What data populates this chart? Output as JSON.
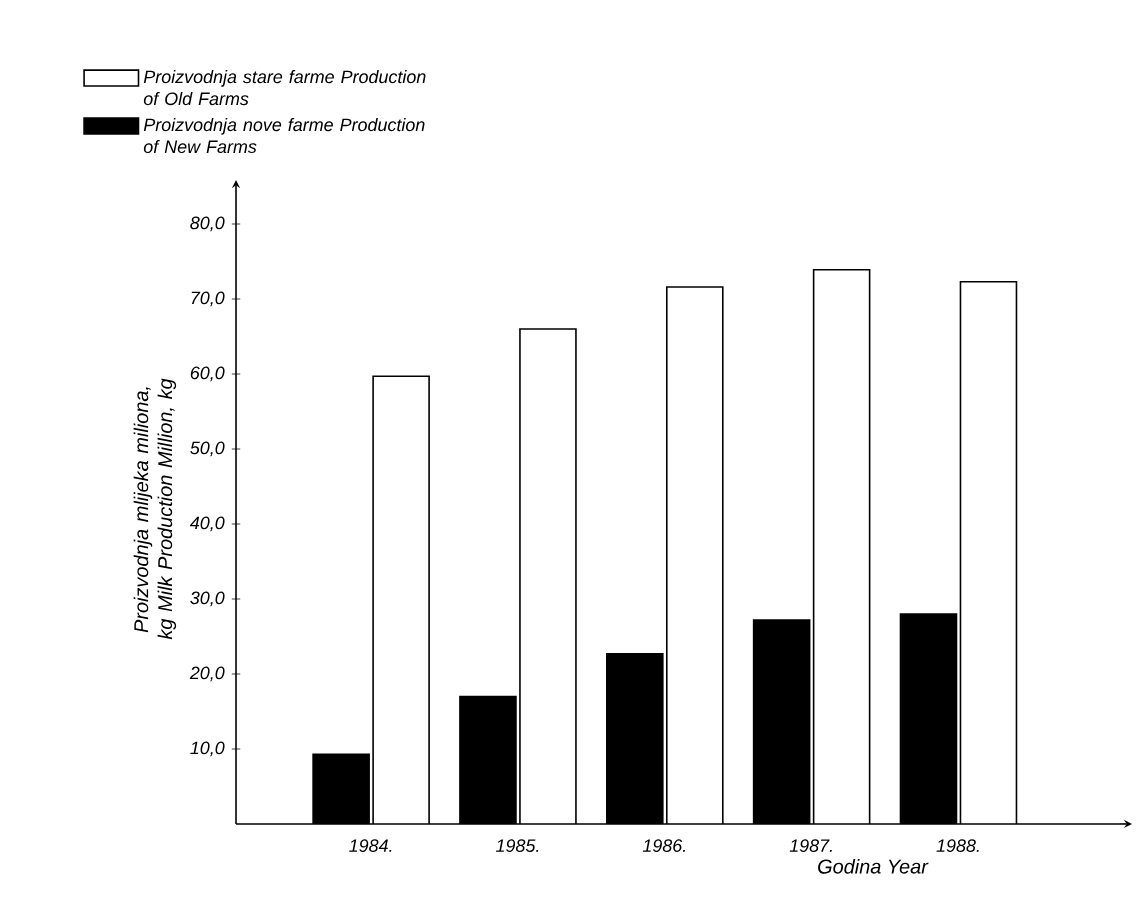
{
  "chart_data": {
    "type": "bar",
    "categories": [
      "1984.",
      "1985.",
      "1986.",
      "1987.",
      "1988."
    ],
    "series": [
      {
        "name": "Proizvodnja nove farme Production of New Farms",
        "color": "#000000",
        "values": [
          9.3,
          17,
          22.7,
          27.2,
          28
        ]
      },
      {
        "name": "Proizvodnja stare farme Production of Old Farms",
        "color": "#ffffff",
        "values": [
          59.7,
          66,
          71.6,
          73.9,
          72.3
        ]
      }
    ],
    "xlabel": "Godina Year",
    "ylabel": "Proizvodnja mlijeka miliona, kg Milk Production Million, kg",
    "ylim": [
      0,
      84
    ],
    "yticks": [
      {
        "value": 10,
        "label": "10,0"
      },
      {
        "value": 20,
        "label": "20,0"
      },
      {
        "value": 30,
        "label": "30,0"
      },
      {
        "value": 40,
        "label": "40,0"
      },
      {
        "value": 50,
        "label": "50,0"
      },
      {
        "value": 60,
        "label": "60,0"
      },
      {
        "value": 70,
        "label": "70,0"
      },
      {
        "value": 80,
        "label": "80,0"
      }
    ],
    "legend": "top left",
    "grid": false
  }
}
